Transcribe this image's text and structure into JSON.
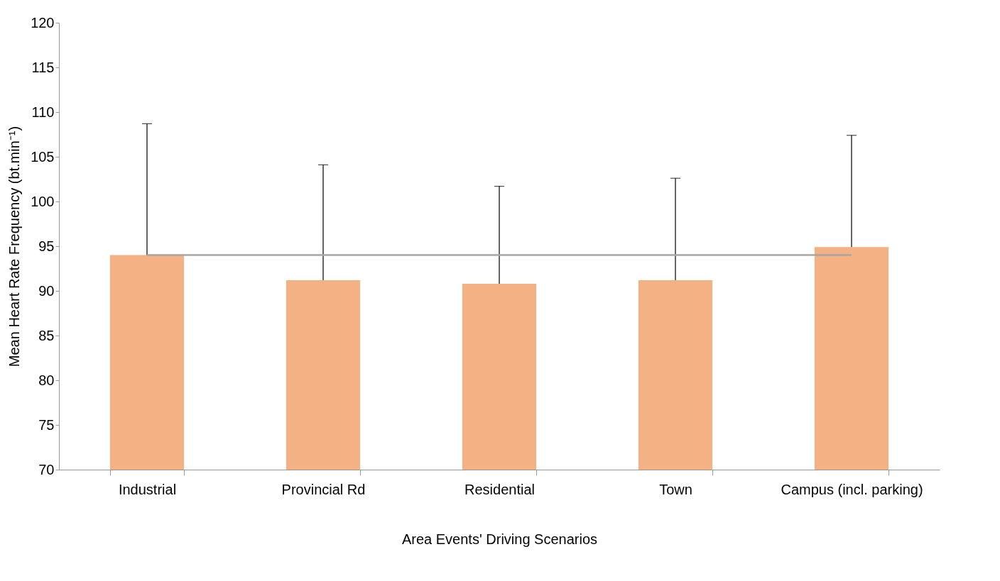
{
  "chart_data": {
    "type": "bar",
    "xlabel": "Area Events' Driving Scenarios",
    "ylabel": "Mean Heart Rate Frequency (bt.min⁻¹)",
    "categories": [
      "Industrial",
      "Provincial Rd",
      "Residential",
      "Town",
      "Campus (incl. parking)"
    ],
    "series": [
      {
        "color": "#f4b183",
        "values": [
          94,
          91.2,
          90.8,
          91.2,
          94.9
        ],
        "errors": [
          [
            94,
            108.7
          ],
          [
            91.2,
            104.1
          ],
          [
            90.8,
            101.7
          ],
          [
            91.2,
            102.6
          ],
          [
            94.9,
            107.4
          ]
        ]
      },
      {
        "type": "line",
        "color": "#a6a6a6",
        "values": [
          94,
          94,
          94,
          94,
          94
        ]
      }
    ],
    "ylim": [
      70,
      120
    ],
    "yticks": [
      70,
      75,
      80,
      85,
      90,
      95,
      100,
      105,
      110,
      115,
      120
    ],
    "grid": false
  }
}
